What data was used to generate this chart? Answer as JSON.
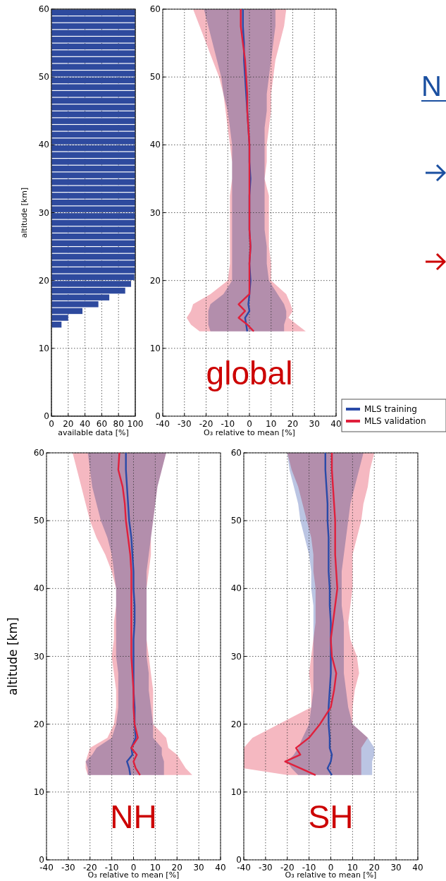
{
  "chart_data": [
    {
      "type": "histogram",
      "orientation": "horizontal",
      "ylabel": "altitude [km]",
      "xlabel": "available data [%]",
      "color": "#2e4a9e",
      "bins": [
        13,
        14,
        15,
        16,
        17,
        18,
        19,
        20,
        21,
        22,
        23,
        24,
        25,
        26,
        27,
        28,
        29,
        30,
        31,
        32,
        33,
        34,
        35,
        36,
        37,
        38,
        39,
        40,
        41,
        42,
        43,
        44,
        45,
        46,
        47,
        48,
        49,
        50,
        51,
        52,
        53,
        54,
        55,
        56,
        57,
        58,
        59,
        60
      ],
      "values": [
        12,
        20,
        37,
        56,
        69,
        88,
        95,
        99,
        100,
        100,
        100,
        100,
        100,
        100,
        100,
        100,
        100,
        100,
        100,
        100,
        100,
        100,
        100,
        100,
        100,
        100,
        100,
        100,
        100,
        100,
        100,
        100,
        100,
        100,
        100,
        100,
        100,
        100,
        100,
        100,
        100,
        100,
        100,
        100,
        100,
        100,
        100
      ],
      "xlim": [
        0,
        100
      ],
      "xticks": [
        0,
        20,
        40,
        60,
        80,
        100
      ],
      "ylim": [
        0,
        60
      ],
      "yticks": [
        0,
        10,
        20,
        30,
        40,
        50,
        60
      ],
      "grid": true
    },
    {
      "type": "line",
      "orientation": "horizontal",
      "xlabel": "O₃ relative to mean [%]",
      "annotations": [
        "global"
      ],
      "legend": "bottom right",
      "xlim": [
        -40,
        40
      ],
      "xticks": [
        -40,
        -30,
        -20,
        -10,
        0,
        10,
        20,
        30,
        40
      ],
      "ylim": [
        0,
        60
      ],
      "yticks": [
        0,
        10,
        20,
        30,
        40,
        50,
        60
      ],
      "grid": true,
      "series": [
        {
          "name": "MLS training",
          "color": "#2a4aa8",
          "x": [
            12.5,
            13.5,
            14.5,
            15.5,
            16.5,
            18,
            20,
            22.5,
            25,
            27.5,
            30,
            32.5,
            35,
            37.5,
            40,
            42.5,
            45,
            47.5,
            50,
            52.5,
            55,
            57.5,
            60
          ],
          "values": [
            -1,
            -1.5,
            -2,
            0,
            -0.5,
            0,
            0.5,
            0,
            0.5,
            0,
            0,
            0,
            0.5,
            0,
            0,
            -0.5,
            -1,
            -1.5,
            -2,
            -2.5,
            -2.5,
            -3,
            -3
          ],
          "lower": [
            -18,
            -19,
            -19,
            -19,
            -18,
            -12,
            -8,
            -8,
            -8,
            -8,
            -8,
            -8,
            -8,
            -8,
            -8,
            -9,
            -10,
            -12,
            -13,
            -15,
            -17,
            -19,
            -21
          ],
          "upper": [
            16,
            16,
            17,
            17,
            16,
            13,
            9,
            8,
            8,
            7,
            7,
            7,
            7,
            7,
            7,
            7,
            8,
            8,
            9,
            10,
            11,
            12,
            12
          ]
        },
        {
          "name": "MLS validation",
          "color": "#e0203c",
          "x": [
            12.5,
            13.5,
            14.5,
            15.5,
            16.5,
            18,
            20,
            22.5,
            25,
            27.5,
            30,
            32.5,
            35,
            37.5,
            40,
            42.5,
            45,
            47.5,
            50,
            52.5,
            55,
            57.5,
            60
          ],
          "values": [
            2,
            -1,
            -5,
            -2,
            -5,
            0,
            0,
            0,
            0.5,
            0,
            0,
            0,
            0,
            0,
            0,
            -0.5,
            -1,
            -1,
            -1.5,
            -2,
            -3,
            -4,
            -4
          ],
          "lower": [
            -23,
            -27,
            -29,
            -27,
            -26,
            -18,
            -10,
            -9,
            -9,
            -9,
            -9,
            -9,
            -8,
            -8,
            -9,
            -10,
            -11,
            -12,
            -14,
            -17,
            -20,
            -23,
            -26
          ],
          "upper": [
            26,
            22,
            18,
            20,
            19,
            17,
            10,
            10,
            9,
            9,
            9,
            9,
            7,
            8,
            8,
            9,
            10,
            10,
            11,
            12,
            14,
            16,
            17
          ]
        }
      ]
    },
    {
      "type": "line",
      "orientation": "horizontal",
      "xlabel": "O₃ relative to mean [%]",
      "ylabel": "altitude [km]",
      "annotations": [
        "NH"
      ],
      "xlim": [
        -40,
        40
      ],
      "xticks": [
        -40,
        -30,
        -20,
        -10,
        0,
        10,
        20,
        30,
        40
      ],
      "ylim": [
        0,
        60
      ],
      "yticks": [
        0,
        10,
        20,
        30,
        40,
        50,
        60
      ],
      "grid": true,
      "series": [
        {
          "color": "#2a4aa8",
          "x": [
            12.5,
            13.5,
            14.5,
            15.5,
            16.5,
            18,
            20,
            22.5,
            25,
            27.5,
            30,
            32.5,
            35,
            37.5,
            40,
            42.5,
            45,
            47.5,
            50,
            52.5,
            55,
            57.5,
            60
          ],
          "values": [
            -1.5,
            -2,
            -3,
            -0.5,
            -1,
            1,
            0.5,
            0.5,
            0,
            0,
            0,
            0,
            0.5,
            0.5,
            0,
            0,
            -0.5,
            -1,
            -2,
            -2.5,
            -3,
            -3.5,
            -3.5
          ],
          "lower": [
            -21,
            -21,
            -22,
            -19,
            -17,
            -10,
            -8,
            -7,
            -7,
            -7,
            -8,
            -8,
            -8,
            -8,
            -8,
            -9,
            -10,
            -12,
            -15,
            -17,
            -19,
            -20,
            -21
          ],
          "upper": [
            14,
            14,
            14,
            13,
            13,
            9,
            9,
            8,
            7,
            7,
            6,
            6,
            6,
            6,
            6,
            6,
            7,
            8,
            9,
            10,
            11,
            13,
            15
          ]
        },
        {
          "color": "#e0203c",
          "x": [
            12.5,
            13.5,
            14.5,
            15.5,
            16.5,
            18,
            20,
            22.5,
            25,
            27.5,
            30,
            32.5,
            35,
            37.5,
            40,
            42.5,
            45,
            47.5,
            50,
            52.5,
            55,
            57.5,
            60
          ],
          "values": [
            3,
            1,
            0,
            1.5,
            -1,
            2,
            0.5,
            0,
            0,
            -0.5,
            -1,
            -1,
            -1,
            -1,
            -1,
            -1,
            -1.5,
            -2.5,
            -3.5,
            -4,
            -5,
            -7,
            -6.5
          ],
          "lower": [
            -21,
            -22,
            -22,
            -21,
            -20,
            -12,
            -9,
            -8,
            -8,
            -9,
            -10,
            -9,
            -9,
            -8,
            -8,
            -10,
            -13,
            -17,
            -20,
            -22,
            -24,
            -26,
            -28
          ],
          "upper": [
            27,
            24,
            22,
            20,
            16,
            15,
            9,
            9,
            9,
            8,
            7,
            6,
            6,
            6,
            6,
            7,
            8,
            8,
            9,
            10,
            11,
            13,
            15
          ]
        }
      ]
    },
    {
      "type": "line",
      "orientation": "horizontal",
      "xlabel": "O₃ relative to mean [%]",
      "annotations": [
        "SH"
      ],
      "xlim": [
        -40,
        40
      ],
      "xticks": [
        -40,
        -30,
        -20,
        -10,
        0,
        10,
        20,
        30,
        40
      ],
      "ylim": [
        0,
        60
      ],
      "yticks": [
        0,
        10,
        20,
        30,
        40,
        50,
        60
      ],
      "grid": true,
      "series": [
        {
          "color": "#2a4aa8",
          "x": [
            12.5,
            13.5,
            14.5,
            15.5,
            16.5,
            18,
            20,
            22.5,
            25,
            27.5,
            30,
            32.5,
            35,
            37.5,
            40,
            42.5,
            45,
            47.5,
            50,
            52.5,
            55,
            57.5,
            60
          ],
          "values": [
            0.5,
            -1.5,
            0,
            0.5,
            -0.5,
            -0.5,
            -1,
            -1,
            -0.5,
            0,
            0,
            0,
            0,
            -0.5,
            -0.5,
            -1,
            -1,
            -1,
            -1.5,
            -1.5,
            -2,
            -2.5,
            -2.5
          ],
          "lower": [
            -15,
            -18,
            -20,
            -17,
            -15,
            -13,
            -10,
            -9,
            -8,
            -8,
            -8,
            -8,
            -8,
            -8,
            -9,
            -9,
            -10,
            -12,
            -14,
            -15,
            -17,
            -19,
            -20
          ],
          "upper": [
            19,
            19,
            19,
            20,
            20,
            17,
            10,
            8,
            7,
            6,
            6,
            6,
            6,
            5,
            5,
            5,
            6,
            7,
            8,
            9,
            11,
            13,
            15
          ]
        },
        {
          "color": "#e0203c",
          "x": [
            12.5,
            13.5,
            14.5,
            15.5,
            16.5,
            18,
            20,
            22.5,
            25,
            27.5,
            30,
            32.5,
            35,
            37.5,
            40,
            42.5,
            45,
            47.5,
            50,
            52.5,
            55,
            57.5,
            60
          ],
          "values": [
            -7,
            -14,
            -21,
            -14,
            -16,
            -10,
            -5,
            0,
            1.5,
            2.5,
            0.5,
            0,
            1,
            2,
            3,
            2.5,
            2,
            2,
            2,
            1.5,
            1,
            0.5,
            0.5
          ],
          "lower": [
            -20,
            -40,
            -40,
            -40,
            -40,
            -36,
            -24,
            -9,
            -9,
            -10,
            -9,
            -8,
            -7,
            -7,
            -7,
            -8,
            -8,
            -9,
            -11,
            -13,
            -15,
            -18,
            -20
          ],
          "upper": [
            14,
            14,
            14,
            14,
            14,
            17,
            10,
            10,
            11,
            13,
            12,
            9,
            8,
            9,
            10,
            10,
            10,
            12,
            14,
            15,
            17,
            18,
            20
          ]
        }
      ]
    },
    {
      "type": "other",
      "annotations": [
        "N"
      ]
    }
  ]
}
